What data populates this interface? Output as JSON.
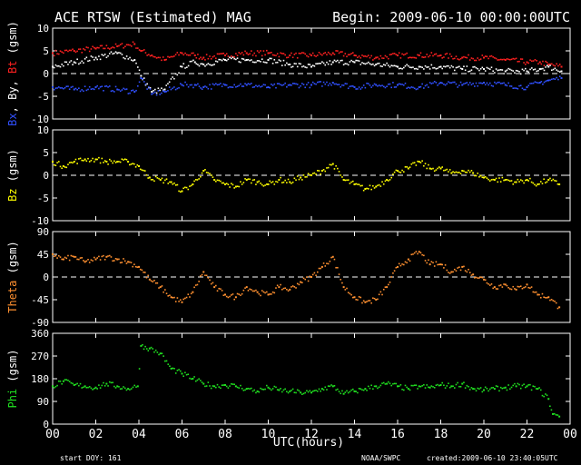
{
  "header": {
    "title": "ACE RTSW (Estimated) MAG",
    "begin": "Begin: 2009-06-10 00:00:00UTC"
  },
  "footer": {
    "start_doy": "start DOY:  161",
    "source": "NOAA/SWPC",
    "created": "created:2009-06-10 23:40:05UTC"
  },
  "x_axis": {
    "label": "UTC(hours)",
    "range": [
      0,
      24
    ],
    "ticks": [
      "00",
      "02",
      "04",
      "06",
      "08",
      "10",
      "12",
      "14",
      "16",
      "18",
      "20",
      "22",
      "00"
    ]
  },
  "colors": {
    "background": "#000000",
    "axes": "#ffffff",
    "bx": "#3050ff",
    "by": "#ffffff",
    "bt": "#ff2020",
    "bz": "#ffff00",
    "theta": "#ff9030",
    "phi": "#20e020"
  },
  "chart_data": [
    {
      "type": "scatter",
      "panel": "B-fields",
      "ylabel_parts": [
        {
          "text": "Bx",
          "color": "#3050ff"
        },
        {
          "text": ", By, ",
          "color": "#ffffff"
        },
        {
          "text": "Bt",
          "color": "#ff2020"
        },
        {
          "text": " (gsm)",
          "color": "#ffffff"
        }
      ],
      "ylim": [
        -10,
        10
      ],
      "yticks": [
        "-10",
        "-5",
        "0",
        "5",
        "10"
      ],
      "ytick_values": [
        -10,
        -5,
        0,
        5,
        10
      ],
      "zero_line": true,
      "x": [
        0,
        1,
        2,
        3,
        3.8,
        4.1,
        4.6,
        5.2,
        6,
        6.6,
        7,
        8,
        9,
        10,
        11,
        12,
        13,
        14,
        15,
        16,
        17,
        18,
        19,
        20,
        21,
        22,
        22.6,
        23,
        23.6
      ],
      "series": [
        {
          "name": "Bt",
          "color": "#ff2020",
          "values": [
            4.5,
            5,
            5.5,
            6,
            6.5,
            5,
            4,
            3,
            4.5,
            4,
            3.5,
            4,
            4.5,
            4.5,
            4,
            4,
            4.5,
            4,
            3.5,
            4,
            4,
            4,
            3.5,
            3.5,
            3,
            2.5,
            2.5,
            2,
            1.5
          ]
        },
        {
          "name": "By",
          "color": "#ffffff",
          "values": [
            1.5,
            2.5,
            3.5,
            4.5,
            3,
            -0.5,
            -4,
            -3.5,
            1.5,
            2.5,
            2,
            3,
            3,
            3,
            2,
            1.5,
            2.5,
            2.5,
            2,
            1.5,
            1.5,
            1.5,
            1,
            1,
            0.5,
            0.5,
            1,
            1.5,
            0.5
          ]
        },
        {
          "name": "Bx",
          "color": "#3050ff",
          "values": [
            -3,
            -3.5,
            -3,
            -3.5,
            -4,
            -1,
            -4.5,
            -4,
            -2.5,
            -2.5,
            -3,
            -2.5,
            -2.5,
            -3,
            -2.5,
            -2.5,
            -2,
            -3,
            -2.5,
            -2.5,
            -3,
            -2,
            -2.5,
            -2,
            -2.5,
            -3,
            -2,
            -1.5,
            -1
          ]
        }
      ]
    },
    {
      "type": "scatter",
      "panel": "Bz",
      "ylabel_parts": [
        {
          "text": "Bz",
          "color": "#ffff00"
        },
        {
          "text": " (gsm)",
          "color": "#ffffff"
        }
      ],
      "ylim": [
        -10,
        10
      ],
      "yticks": [
        "-10",
        "-5",
        "0",
        "5",
        "10"
      ],
      "ytick_values": [
        -10,
        -5,
        0,
        5,
        10
      ],
      "zero_line": true,
      "x": [
        0,
        0.5,
        1,
        1.5,
        2,
        2.5,
        3,
        3.5,
        4,
        4.5,
        5,
        5.5,
        6,
        6.5,
        7,
        7.5,
        8,
        8.5,
        9,
        9.5,
        10,
        10.5,
        11,
        11.5,
        12,
        12.5,
        13,
        13.5,
        14,
        14.5,
        15,
        15.5,
        16,
        16.5,
        17,
        17.5,
        18,
        18.5,
        19,
        19.5,
        20,
        20.5,
        21,
        21.5,
        22,
        22.5,
        23,
        23.5
      ],
      "series": [
        {
          "name": "Bz",
          "color": "#ffff00",
          "values": [
            3,
            2,
            3,
            3.5,
            3.5,
            3,
            3,
            3,
            2,
            -0.5,
            -1,
            -1.5,
            -3.5,
            -2,
            1,
            -1,
            -2,
            -2.5,
            -1,
            -1.5,
            -2,
            -1,
            -1.5,
            -0.5,
            0,
            1,
            2.5,
            -1,
            -2,
            -3,
            -2.5,
            -1,
            1,
            1.5,
            3,
            1.5,
            1.5,
            0.5,
            1,
            0.5,
            -0.5,
            -1,
            -1,
            -1.5,
            -1,
            -2,
            -1,
            -2
          ]
        }
      ]
    },
    {
      "type": "scatter",
      "panel": "Theta",
      "ylabel_parts": [
        {
          "text": "Theta",
          "color": "#ff9030"
        },
        {
          "text": " (gsm)",
          "color": "#ffffff"
        }
      ],
      "ylim": [
        -90,
        90
      ],
      "yticks": [
        "-90",
        "-45",
        "0",
        "45",
        "90"
      ],
      "ytick_values": [
        -90,
        -45,
        0,
        45,
        90
      ],
      "zero_line": true,
      "x": [
        0,
        0.5,
        1,
        1.5,
        2,
        2.5,
        3,
        3.5,
        4,
        4.5,
        5,
        5.5,
        6,
        6.5,
        7,
        7.5,
        8,
        8.5,
        9,
        9.5,
        10,
        10.5,
        11,
        11.5,
        12,
        12.5,
        13,
        13.5,
        14,
        14.5,
        15,
        15.5,
        16,
        16.5,
        17,
        17.5,
        18,
        18.5,
        19,
        19.5,
        20,
        20.5,
        21,
        21.5,
        22,
        22.5,
        23,
        23.5
      ],
      "series": [
        {
          "name": "Theta",
          "color": "#ff9030",
          "values": [
            45,
            35,
            40,
            30,
            35,
            40,
            35,
            30,
            20,
            -5,
            -20,
            -40,
            -50,
            -30,
            10,
            -20,
            -35,
            -40,
            -20,
            -30,
            -35,
            -20,
            -25,
            -10,
            0,
            20,
            40,
            -20,
            -40,
            -50,
            -45,
            -20,
            20,
            35,
            50,
            25,
            25,
            10,
            20,
            5,
            -5,
            -20,
            -15,
            -25,
            -15,
            -35,
            -40,
            -60
          ]
        }
      ]
    },
    {
      "type": "scatter",
      "panel": "Phi",
      "ylabel_parts": [
        {
          "text": "Phi",
          "color": "#20e020"
        },
        {
          "text": " (gsm)",
          "color": "#ffffff"
        }
      ],
      "ylim": [
        0,
        360
      ],
      "yticks": [
        "0",
        "90",
        "180",
        "270",
        "360"
      ],
      "ytick_values": [
        0,
        90,
        180,
        270,
        360
      ],
      "zero_line": false,
      "x": [
        0,
        0.5,
        1,
        1.5,
        2,
        2.5,
        3,
        3.5,
        3.95,
        4.1,
        4.5,
        5,
        5.5,
        6,
        6.5,
        7,
        7.5,
        8,
        8.5,
        9,
        9.5,
        10,
        10.5,
        11,
        11.5,
        12,
        12.5,
        13,
        13.5,
        14,
        14.5,
        15,
        15.5,
        16,
        16.5,
        17,
        17.5,
        18,
        18.5,
        19,
        19.5,
        20,
        20.5,
        21,
        21.5,
        22,
        22.5,
        23,
        23.2,
        23.5
      ],
      "series": [
        {
          "name": "Phi",
          "color": "#20e020",
          "values": [
            150,
            170,
            155,
            150,
            145,
            160,
            150,
            140,
            150,
            310,
            300,
            280,
            220,
            200,
            180,
            160,
            150,
            155,
            150,
            140,
            130,
            145,
            135,
            130,
            125,
            125,
            140,
            150,
            120,
            130,
            140,
            150,
            160,
            150,
            140,
            150,
            145,
            155,
            150,
            160,
            140,
            135,
            140,
            145,
            150,
            150,
            140,
            100,
            40,
            30
          ]
        }
      ]
    }
  ]
}
